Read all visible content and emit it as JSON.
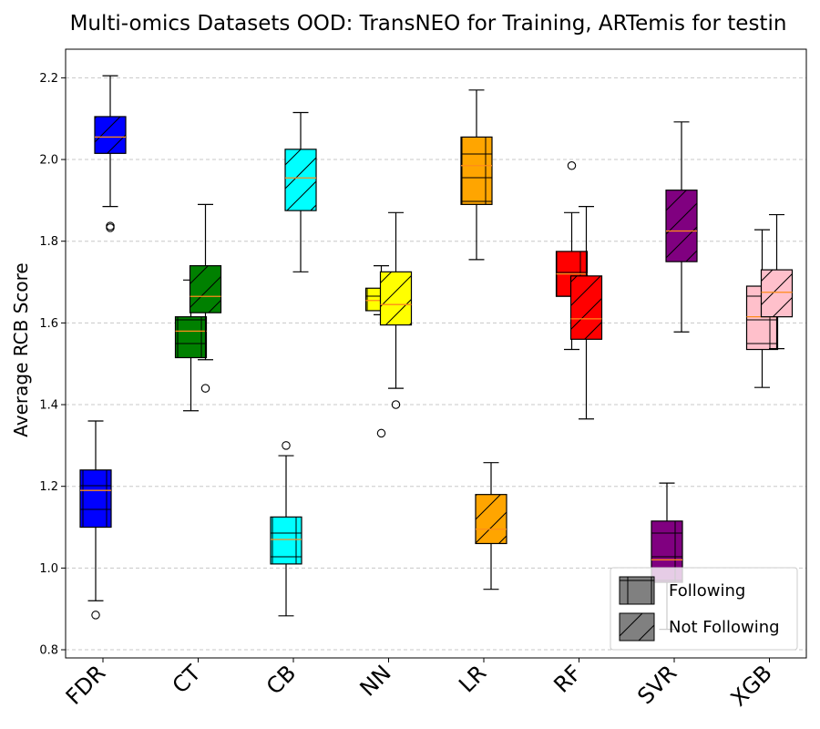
{
  "chart_data": {
    "type": "box",
    "title": "Multi-omics Datasets OOD: TransNEO for Training, ARTemis for testin",
    "xlabel": "",
    "ylabel": "Average RCB Score",
    "categories": [
      "FDR",
      "CT",
      "CB",
      "NN",
      "LR",
      "RF",
      "SVR",
      "XGB"
    ],
    "ylim": [
      0.78,
      2.27
    ],
    "yticks": [
      "0.8",
      "1.0",
      "1.2",
      "1.4",
      "1.6",
      "1.8",
      "2.0",
      "2.2"
    ],
    "grid": "y-dashed",
    "legend_position": "bottom-right",
    "legend": [
      {
        "label": "Following",
        "hatch": "grid"
      },
      {
        "label": "Not Following",
        "hatch": "diagonal"
      }
    ],
    "boxes": [
      {
        "category": "FDR",
        "group": "Following",
        "color": "#0000ff",
        "hatch": "grid",
        "whislo": 0.92,
        "q1": 1.1,
        "med": 1.19,
        "q3": 1.24,
        "whishi": 1.36,
        "fliers": [
          0.885
        ]
      },
      {
        "category": "FDR",
        "group": "Not Following",
        "color": "#0000ff",
        "hatch": "diagonal",
        "whislo": 1.885,
        "q1": 2.015,
        "med": 2.055,
        "q3": 2.105,
        "whishi": 2.205,
        "fliers": [
          1.833,
          1.837
        ]
      },
      {
        "category": "CT",
        "group": "Following",
        "color": "#008000",
        "hatch": "grid",
        "whislo": 1.385,
        "q1": 1.515,
        "med": 1.58,
        "q3": 1.615,
        "whishi": 1.705,
        "fliers": []
      },
      {
        "category": "CT",
        "group": "Not Following",
        "color": "#008000",
        "hatch": "diagonal",
        "whislo": 1.51,
        "q1": 1.625,
        "med": 1.665,
        "q3": 1.74,
        "whishi": 1.89,
        "fliers": [
          1.44
        ]
      },
      {
        "category": "CB",
        "group": "Following",
        "color": "#00ffff",
        "hatch": "grid",
        "whislo": 0.883,
        "q1": 1.01,
        "med": 1.07,
        "q3": 1.125,
        "whishi": 1.275,
        "fliers": [
          1.3
        ]
      },
      {
        "category": "CB",
        "group": "Not Following",
        "color": "#00ffff",
        "hatch": "diagonal",
        "whislo": 1.725,
        "q1": 1.875,
        "med": 1.955,
        "q3": 2.025,
        "whishi": 2.115,
        "fliers": []
      },
      {
        "category": "NN",
        "group": "Following",
        "color": "#ffff00",
        "hatch": "grid",
        "whislo": 1.62,
        "q1": 1.63,
        "med": 1.655,
        "q3": 1.685,
        "whishi": 1.74,
        "fliers": [
          1.33
        ]
      },
      {
        "category": "NN",
        "group": "Not Following",
        "color": "#ffff00",
        "hatch": "diagonal",
        "whislo": 1.44,
        "q1": 1.595,
        "med": 1.645,
        "q3": 1.725,
        "whishi": 1.87,
        "fliers": [
          1.4
        ]
      },
      {
        "category": "LR",
        "group": "Following",
        "color": "#ffa500",
        "hatch": "grid",
        "whislo": 1.755,
        "q1": 1.89,
        "med": 1.985,
        "q3": 2.055,
        "whishi": 2.17,
        "fliers": []
      },
      {
        "category": "LR",
        "group": "Not Following",
        "color": "#ffa500",
        "hatch": "diagonal",
        "whislo": 0.948,
        "q1": 1.06,
        "med": 1.095,
        "q3": 1.18,
        "whishi": 1.258,
        "fliers": []
      },
      {
        "category": "RF",
        "group": "Following",
        "color": "#ff0000",
        "hatch": "grid",
        "whislo": 1.535,
        "q1": 1.665,
        "med": 1.72,
        "q3": 1.775,
        "whishi": 1.87,
        "fliers": [
          1.985
        ]
      },
      {
        "category": "RF",
        "group": "Not Following",
        "color": "#ff0000",
        "hatch": "diagonal",
        "whislo": 1.365,
        "q1": 1.56,
        "med": 1.61,
        "q3": 1.715,
        "whishi": 1.885,
        "fliers": []
      },
      {
        "category": "SVR",
        "group": "Following",
        "color": "#800080",
        "hatch": "grid",
        "whislo": 0.85,
        "q1": 0.965,
        "med": 1.02,
        "q3": 1.115,
        "whishi": 1.208,
        "fliers": []
      },
      {
        "category": "SVR",
        "group": "Not Following",
        "color": "#800080",
        "hatch": "diagonal",
        "whislo": 1.578,
        "q1": 1.75,
        "med": 1.825,
        "q3": 1.925,
        "whishi": 2.092,
        "fliers": []
      },
      {
        "category": "XGB",
        "group": "Following",
        "color": "#ffc0cb",
        "hatch": "grid",
        "whislo": 1.442,
        "q1": 1.535,
        "med": 1.615,
        "q3": 1.69,
        "whishi": 1.828,
        "fliers": []
      },
      {
        "category": "XGB",
        "group": "Not Following",
        "color": "#ffc0cb",
        "hatch": "diagonal",
        "whislo": 1.537,
        "q1": 1.615,
        "med": 1.675,
        "q3": 1.73,
        "whishi": 1.865,
        "fliers": []
      }
    ]
  }
}
